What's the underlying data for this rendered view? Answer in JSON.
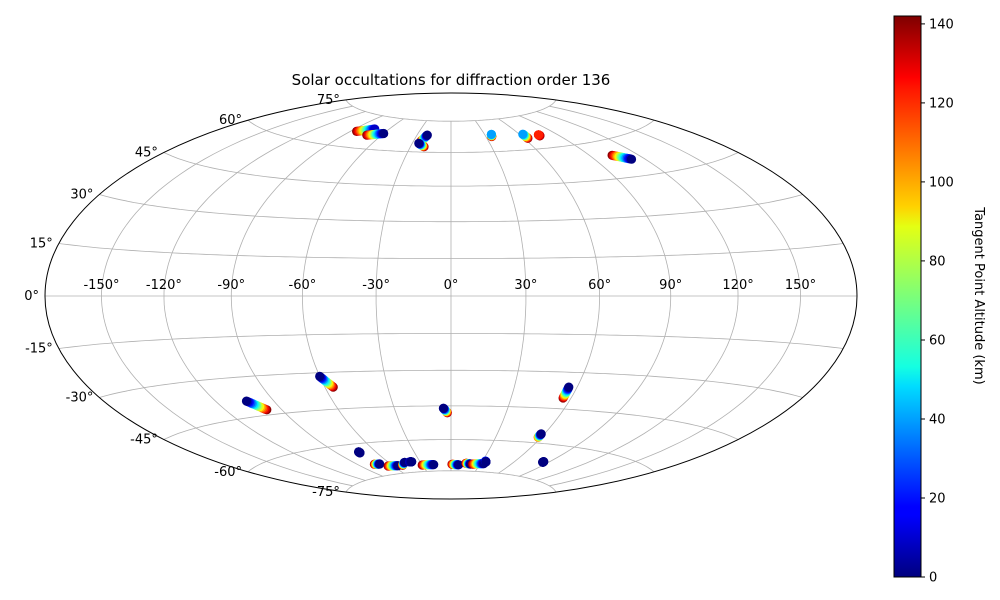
{
  "chart_data": {
    "type": "scatter",
    "projection": "hammer",
    "title": "Solar occultations for diffraction order 136",
    "grid": true,
    "lon_ticks": [
      {
        "value": -150,
        "label": "-150°"
      },
      {
        "value": -120,
        "label": "-120°"
      },
      {
        "value": -90,
        "label": "-90°"
      },
      {
        "value": -60,
        "label": "-60°"
      },
      {
        "value": -30,
        "label": "-30°"
      },
      {
        "value": 0,
        "label": "0°"
      },
      {
        "value": 30,
        "label": "30°"
      },
      {
        "value": 60,
        "label": "60°"
      },
      {
        "value": 90,
        "label": "90°"
      },
      {
        "value": 120,
        "label": "120°"
      },
      {
        "value": 150,
        "label": "150°"
      }
    ],
    "lat_ticks": [
      {
        "value": 75,
        "label": "75°"
      },
      {
        "value": 60,
        "label": "60°"
      },
      {
        "value": 45,
        "label": "45°"
      },
      {
        "value": 30,
        "label": "30°"
      },
      {
        "value": 15,
        "label": "15°"
      },
      {
        "value": 0,
        "label": "0°"
      },
      {
        "value": -15,
        "label": "-15°"
      },
      {
        "value": -30,
        "label": "-30°"
      },
      {
        "value": -45,
        "label": "-45°"
      },
      {
        "value": -60,
        "label": "-60°"
      },
      {
        "value": -75,
        "label": "-75°"
      }
    ],
    "colorbar": {
      "label": "Tangent Point Altitude (km)",
      "min": 0,
      "max": 142,
      "ticks": [
        {
          "value": 0,
          "label": "0"
        },
        {
          "value": 20,
          "label": "20"
        },
        {
          "value": 40,
          "label": "40"
        },
        {
          "value": 60,
          "label": "60"
        },
        {
          "value": 80,
          "label": "80"
        },
        {
          "value": 100,
          "label": "100"
        },
        {
          "value": 120,
          "label": "120"
        },
        {
          "value": 140,
          "label": "140"
        }
      ],
      "colormap": "jet"
    },
    "tracks": [
      {
        "lon_start": -85,
        "lat_start": 67,
        "alt_start": 140,
        "lon_end": -73,
        "lat_end": 69,
        "alt_end": 10
      },
      {
        "lon_start": -72,
        "lat_start": 66,
        "alt_start": 140,
        "lon_end": -60,
        "lat_end": 67.5,
        "alt_end": 0
      },
      {
        "lon_start": -24,
        "lat_start": 65,
        "alt_start": 140,
        "lon_end": -21,
        "lat_end": 68,
        "alt_end": 0
      },
      {
        "lon_start": -25,
        "lat_start": 64,
        "alt_start": 0,
        "lon_end": -20,
        "lat_end": 62.5,
        "alt_end": 140
      },
      {
        "lon_start": 35,
        "lat_start": 67,
        "alt_start": 140,
        "lon_end": 36,
        "lat_end": 68,
        "alt_end": 40
      },
      {
        "lon_start": 63,
        "lat_start": 65,
        "alt_start": 140,
        "lon_end": 63,
        "lat_end": 67,
        "alt_end": 40
      },
      {
        "lon_start": 75,
        "lat_start": 65.5,
        "alt_start": 140,
        "lon_end": 75,
        "lat_end": 66,
        "alt_end": 120
      },
      {
        "lon_start": 104,
        "lat_start": 54,
        "alt_start": 140,
        "lon_end": 112,
        "lat_end": 51.5,
        "alt_end": 0
      },
      {
        "lon_start": -104,
        "lat_start": -39,
        "alt_start": 0,
        "lon_end": -98,
        "lat_end": -43,
        "alt_end": 140
      },
      {
        "lon_start": -60,
        "lat_start": -31.5,
        "alt_start": 0,
        "lon_end": -56,
        "lat_end": -36,
        "alt_end": 140
      },
      {
        "lon_start": -4,
        "lat_start": -46,
        "alt_start": 0,
        "lon_end": -2,
        "lat_end": -48,
        "alt_end": 140
      },
      {
        "lon_start": 56,
        "lat_start": -36,
        "alt_start": 0,
        "lon_end": 56,
        "lat_end": -40.5,
        "alt_end": 140
      },
      {
        "lon_start": 58,
        "lat_start": -56,
        "alt_start": 0,
        "lon_end": 58,
        "lat_end": -57.5,
        "alt_end": 110
      },
      {
        "lon_start": -73,
        "lat_start": -63.5,
        "alt_start": 0,
        "lon_end": -73,
        "lat_end": -64,
        "alt_end": 0
      },
      {
        "lon_start": -75,
        "lat_start": -69.5,
        "alt_start": 140,
        "lon_end": -70,
        "lat_end": -69.7,
        "alt_end": 0
      },
      {
        "lon_start": -65,
        "lat_start": -71,
        "alt_start": 140,
        "lon_end": -55,
        "lat_end": -71.3,
        "alt_end": 0
      },
      {
        "lon_start": -50,
        "lat_start": -71.3,
        "alt_start": 140,
        "lon_end": -45,
        "lat_end": -70,
        "alt_end": 0
      },
      {
        "lon_start": -40,
        "lat_start": -70,
        "alt_start": 10,
        "lon_end": -38,
        "lat_end": -70,
        "alt_end": 0
      },
      {
        "lon_start": -30,
        "lat_start": -71.8,
        "alt_start": 140,
        "lon_end": -18,
        "lat_end": -71.8,
        "alt_end": 0
      },
      {
        "lon_start": 1,
        "lat_start": -71.8,
        "alt_start": 140,
        "lon_end": 8,
        "lat_end": -72,
        "alt_end": 0
      },
      {
        "lon_start": 15,
        "lat_start": -71.2,
        "alt_start": 140,
        "lon_end": 20,
        "lat_end": -71.5,
        "alt_end": 0
      },
      {
        "lon_start": 22,
        "lat_start": -71.5,
        "alt_start": 140,
        "lon_end": 33,
        "lat_end": -71,
        "alt_end": 0
      },
      {
        "lon_start": 33,
        "lat_start": -69.8,
        "alt_start": 30,
        "lon_end": 34,
        "lat_end": -70.2,
        "alt_end": 0
      },
      {
        "lon_start": 85,
        "lat_start": -67.5,
        "alt_start": 0,
        "lon_end": 85,
        "lat_end": -67.8,
        "alt_end": 0
      }
    ]
  }
}
